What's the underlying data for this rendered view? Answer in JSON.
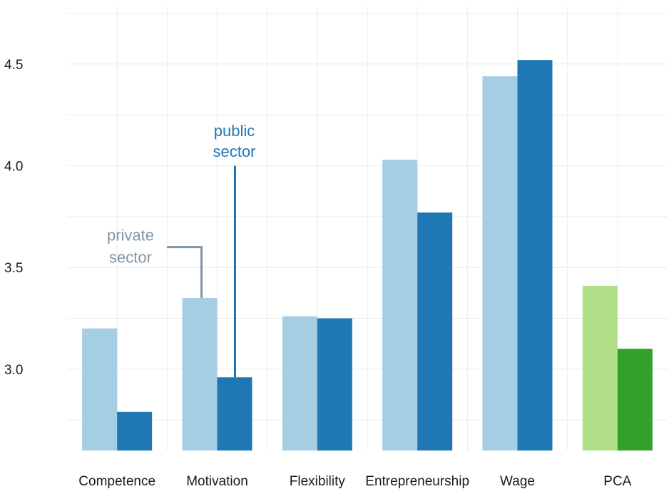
{
  "chart_data": {
    "type": "bar",
    "title": "",
    "xlabel": "",
    "ylabel": "",
    "categories": [
      "Competence",
      "Motivation",
      "Flexibility",
      "Entrepreneurship",
      "Wage",
      "PCA"
    ],
    "series": [
      {
        "values": [
          3.2,
          3.35,
          3.26,
          4.03,
          4.44,
          3.41
        ]
      },
      {
        "values": [
          2.79,
          2.96,
          3.25,
          3.77,
          4.52,
          3.1
        ]
      }
    ],
    "ylim": [
      2.6,
      4.78
    ],
    "yticks": [
      3.0,
      3.5,
      4.0,
      4.5
    ],
    "grid": true,
    "legend": "none",
    "colors": {
      "private": "#a6cee3",
      "public": "#1f78b4",
      "private_pca": "#b2df8a",
      "public_pca": "#33a02c",
      "private_annotation": "#7f96a8",
      "public_annotation": "#1f78b4",
      "grid": "#ebebeb"
    },
    "annotations": [
      {
        "text_lines": [
          "private",
          "sector"
        ],
        "series_index": 0,
        "category": "Motivation"
      },
      {
        "text_lines": [
          "public",
          "sector"
        ],
        "series_index": 1,
        "category": "Motivation"
      }
    ]
  }
}
